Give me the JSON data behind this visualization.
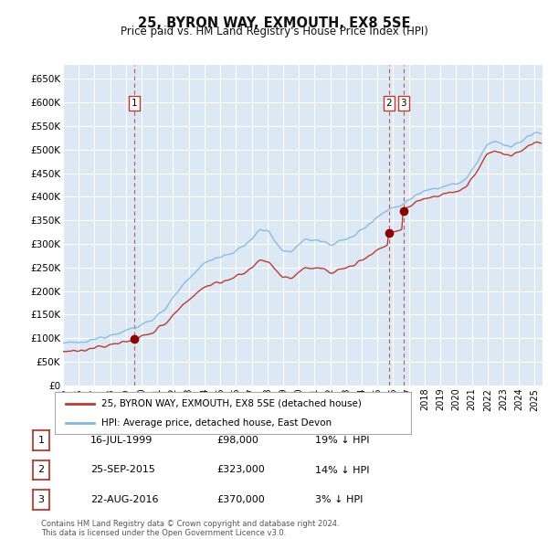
{
  "title": "25, BYRON WAY, EXMOUTH, EX8 5SE",
  "subtitle": "Price paid vs. HM Land Registry's House Price Index (HPI)",
  "ylim": [
    0,
    680000
  ],
  "yticks": [
    0,
    50000,
    100000,
    150000,
    200000,
    250000,
    300000,
    350000,
    400000,
    450000,
    500000,
    550000,
    600000,
    650000
  ],
  "ytick_labels": [
    "£0",
    "£50K",
    "£100K",
    "£150K",
    "£200K",
    "£250K",
    "£300K",
    "£350K",
    "£400K",
    "£450K",
    "£500K",
    "£550K",
    "£600K",
    "£650K"
  ],
  "background_color": "#ffffff",
  "plot_bg_color": "#dce9f5",
  "grid_color": "#ffffff",
  "legend_label_red": "25, BYRON WAY, EXMOUTH, EX8 5SE (detached house)",
  "legend_label_blue": "HPI: Average price, detached house, East Devon",
  "purchase1_x": 1999.54,
  "purchase1_price": 98000,
  "purchase2_x": 2015.73,
  "purchase2_price": 323000,
  "purchase3_x": 2016.65,
  "purchase3_price": 370000,
  "purchases": [
    {
      "label": "1",
      "date_x": 1999.54,
      "price": 98000
    },
    {
      "label": "2",
      "date_x": 2015.73,
      "price": 323000
    },
    {
      "label": "3",
      "date_x": 2016.65,
      "price": 370000
    }
  ],
  "table_rows": [
    {
      "num": "1",
      "date": "16-JUL-1999",
      "price": "£98,000",
      "hpi": "19% ↓ HPI"
    },
    {
      "num": "2",
      "date": "25-SEP-2015",
      "price": "£323,000",
      "hpi": "14% ↓ HPI"
    },
    {
      "num": "3",
      "date": "22-AUG-2016",
      "price": "£370,000",
      "hpi": "3% ↓ HPI"
    }
  ],
  "footer": "Contains HM Land Registry data © Crown copyright and database right 2024.\nThis data is licensed under the Open Government Licence v3.0.",
  "hpi_color": "#7db8e0",
  "price_color": "#c0392b",
  "vline_color": "#c0392b",
  "marker_color": "#8b0000",
  "xlim_start": 1995.0,
  "xlim_end": 2025.5
}
